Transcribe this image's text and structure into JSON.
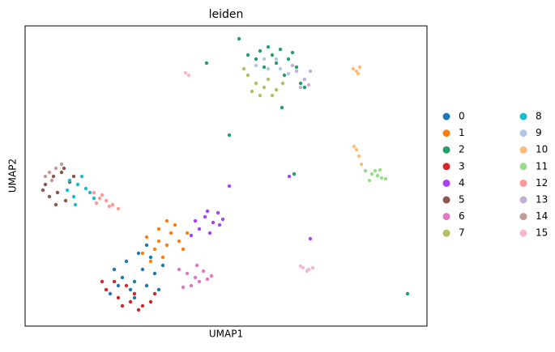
{
  "chart_data": {
    "type": "scatter",
    "title": "leiden",
    "x_label": "UMAP1",
    "y_label": "UMAP2",
    "xlim": [
      0,
      496
    ],
    "ylim": [
      0,
      371
    ],
    "legend": "right",
    "series": [
      {
        "name": "0",
        "color": "#1f77b4",
        "x": [
          120,
          135,
          145,
          130,
          150,
          160,
          125,
          140,
          155,
          115,
          165,
          110,
          135,
          150,
          170,
          105
        ],
        "y": [
          60,
          55,
          70,
          45,
          50,
          65,
          80,
          90,
          85,
          50,
          45,
          70,
          35,
          100,
          75,
          40
        ]
      },
      {
        "name": "1",
        "color": "#ff7f0e",
        "x": [
          150,
          165,
          180,
          175,
          190,
          160,
          170,
          185,
          195,
          145,
          200,
          155,
          175,
          165
        ],
        "y": [
          110,
          120,
          115,
          100,
          105,
          95,
          85,
          125,
          95,
          90,
          115,
          80,
          130,
          105
        ]
      },
      {
        "name": "2",
        "color": "#279e68",
        "x": [
          290,
          300,
          315,
          305,
          325,
          285,
          335,
          310,
          295,
          320,
          340,
          275,
          330,
          345,
          224,
          252,
          332,
          264,
          317,
          472
        ],
        "y": [
          340,
          345,
          342,
          335,
          330,
          330,
          320,
          325,
          320,
          310,
          300,
          335,
          338,
          295,
          325,
          236,
          188,
          355,
          270,
          40
        ]
      },
      {
        "name": "3",
        "color": "#d62728",
        "x": [
          100,
          115,
          130,
          145,
          120,
          135,
          155,
          110,
          95,
          160,
          125,
          140
        ],
        "y": [
          45,
          35,
          30,
          25,
          25,
          40,
          30,
          55,
          55,
          40,
          50,
          20
        ]
      },
      {
        "name": "4",
        "color": "#aa40fc",
        "x": [
          210,
          222,
          232,
          240,
          215,
          228,
          238,
          205,
          225,
          244,
          252,
          352,
          326
        ],
        "y": [
          130,
          135,
          128,
          125,
          120,
          115,
          140,
          112,
          142,
          132,
          173,
          108,
          185
        ]
      },
      {
        "name": "5",
        "color": "#8c564b",
        "x": [
          25,
          35,
          45,
          30,
          40,
          55,
          50,
          22,
          38,
          60,
          48
        ],
        "y": [
          175,
          185,
          190,
          160,
          165,
          178,
          155,
          168,
          150,
          185,
          195
        ]
      },
      {
        "name": "6",
        "color": "#e377c2",
        "x": [
          200,
          210,
          220,
          215,
          205,
          225,
          190,
          230,
          195,
          212
        ],
        "y": [
          65,
          60,
          68,
          55,
          50,
          58,
          70,
          62,
          48,
          75
        ]
      },
      {
        "name": "7",
        "color": "#b5bd61",
        "x": [
          275,
          285,
          295,
          280,
          300,
          310,
          290,
          270,
          305,
          318
        ],
        "y": [
          310,
          300,
          295,
          290,
          305,
          292,
          285,
          318,
          285,
          300
        ]
      },
      {
        "name": "8",
        "color": "#17becf",
        "x": [
          55,
          65,
          75,
          60,
          70,
          80,
          85,
          62,
          52
        ],
        "y": [
          180,
          175,
          170,
          160,
          185,
          165,
          158,
          150,
          168
        ]
      },
      {
        "name": "9",
        "color": "#aec7e8",
        "x": [
          285,
          300,
          315,
          310,
          295,
          325
        ],
        "y": [
          322,
          318,
          318,
          330,
          330,
          312
        ]
      },
      {
        "name": "10",
        "color": "#ffbb78",
        "x": [
          409,
          411,
          405,
          413,
          409,
          412,
          415,
          406
        ],
        "y": [
          315,
          312,
          318,
          320,
          218,
          210,
          200,
          222
        ]
      },
      {
        "name": "11",
        "color": "#98df8a",
        "x": [
          420,
          428,
          435,
          440,
          445,
          432,
          425,
          438
        ],
        "y": [
          192,
          188,
          186,
          183,
          182,
          192,
          180,
          193
        ]
      },
      {
        "name": "12",
        "color": "#ff9896",
        "x": [
          85,
          92,
          100,
          108,
          115,
          95,
          104,
          88
        ],
        "y": [
          165,
          158,
          155,
          150,
          145,
          162,
          148,
          152
        ]
      },
      {
        "name": "13",
        "color": "#c5b0d5",
        "x": [
          335,
          345,
          352,
          340,
          350,
          330
        ],
        "y": [
          315,
          305,
          315,
          295,
          298,
          322
        ]
      },
      {
        "name": "14",
        "color": "#c49c94",
        "x": [
          30,
          38,
          25,
          45,
          33
        ],
        "y": [
          190,
          195,
          185,
          200,
          180
        ]
      },
      {
        "name": "15",
        "color": "#f7b6d2",
        "x": [
          343,
          350,
          355,
          348,
          340,
          198,
          202
        ],
        "y": [
          72,
          70,
          72,
          68,
          74,
          313,
          310
        ]
      }
    ]
  }
}
